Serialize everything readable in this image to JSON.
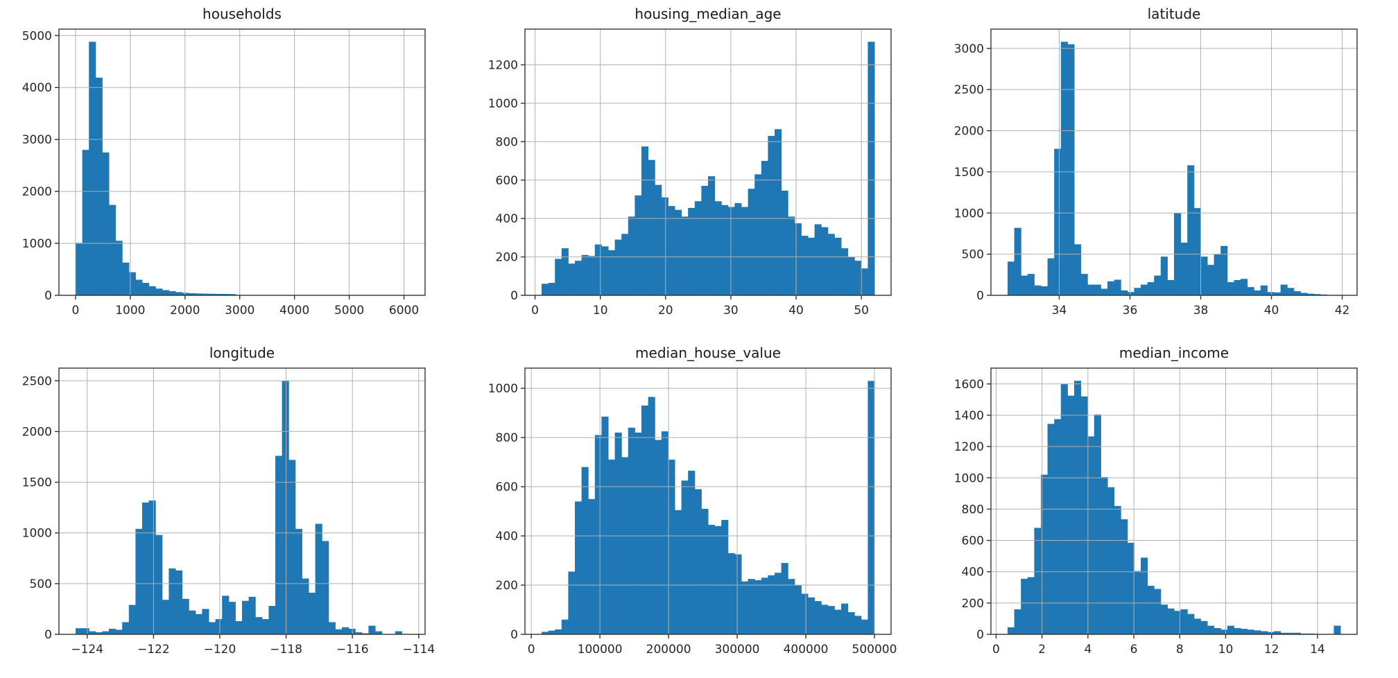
{
  "style": {
    "background": "#ffffff",
    "bar_color": "#1f77b4",
    "grid_color": "#b0b0b0",
    "spine_color": "#333333",
    "text_color": "#262626"
  },
  "chart_data": [
    {
      "type": "bar",
      "subtype": "histogram",
      "title": "households",
      "xlabel": "",
      "ylabel": "",
      "grid": true,
      "legend": false,
      "bin_range": [
        1,
        6082
      ],
      "values": [
        1010,
        2800,
        4880,
        4190,
        2750,
        1740,
        1050,
        630,
        445,
        300,
        240,
        175,
        130,
        100,
        80,
        62,
        48,
        40,
        35,
        32,
        30,
        28,
        27,
        25,
        8,
        6,
        5,
        4,
        3,
        3,
        2,
        2,
        2,
        1,
        1,
        1,
        1,
        1,
        0,
        0,
        1,
        0,
        0,
        0,
        0,
        0,
        0,
        0,
        0,
        1
      ],
      "xlim": [
        -303.05,
        6386.05
      ],
      "ylim": [
        0,
        5124
      ],
      "xticks": [
        0,
        1000,
        2000,
        3000,
        4000,
        5000,
        6000
      ],
      "xtick_labels": [
        "0",
        "1000",
        "2000",
        "3000",
        "4000",
        "5000",
        "6000"
      ],
      "yticks": [
        0,
        1000,
        2000,
        3000,
        4000,
        5000
      ],
      "ytick_labels": [
        "0",
        "1000",
        "2000",
        "3000",
        "4000",
        "5000"
      ]
    },
    {
      "type": "bar",
      "subtype": "histogram",
      "title": "housing_median_age",
      "xlabel": "",
      "ylabel": "",
      "grid": true,
      "legend": false,
      "bin_range": [
        1,
        52
      ],
      "values": [
        60,
        65,
        190,
        245,
        165,
        180,
        210,
        205,
        265,
        255,
        235,
        290,
        320,
        410,
        520,
        775,
        705,
        575,
        510,
        465,
        445,
        410,
        455,
        490,
        570,
        620,
        490,
        470,
        460,
        480,
        460,
        555,
        630,
        700,
        830,
        865,
        545,
        410,
        375,
        310,
        300,
        370,
        355,
        320,
        300,
        245,
        200,
        180,
        140,
        1320
      ],
      "xlim": [
        -1.55,
        54.55
      ],
      "ylim": [
        0,
        1386
      ],
      "xticks": [
        0,
        10,
        20,
        30,
        40,
        50
      ],
      "xtick_labels": [
        "0",
        "10",
        "20",
        "30",
        "40",
        "50"
      ],
      "yticks": [
        0,
        200,
        400,
        600,
        800,
        1000,
        1200
      ],
      "ytick_labels": [
        "0",
        "200",
        "400",
        "600",
        "800",
        "1000",
        "1200"
      ]
    },
    {
      "type": "bar",
      "subtype": "histogram",
      "title": "latitude",
      "xlabel": "",
      "ylabel": "",
      "grid": true,
      "legend": false,
      "bin_range": [
        32.54,
        41.95
      ],
      "values": [
        410,
        820,
        240,
        260,
        120,
        110,
        450,
        1780,
        3080,
        3050,
        620,
        260,
        130,
        130,
        80,
        170,
        190,
        60,
        40,
        90,
        130,
        160,
        240,
        470,
        185,
        1000,
        640,
        1580,
        1060,
        470,
        370,
        500,
        600,
        160,
        185,
        200,
        100,
        60,
        120,
        40,
        35,
        130,
        90,
        50,
        30,
        20,
        15,
        10,
        5,
        5
      ],
      "xlim": [
        32.0695,
        42.4205
      ],
      "ylim": [
        0,
        3234
      ],
      "xticks": [
        34,
        36,
        38,
        40,
        42
      ],
      "xtick_labels": [
        "34",
        "36",
        "38",
        "40",
        "42"
      ],
      "yticks": [
        0,
        500,
        1000,
        1500,
        2000,
        2500,
        3000
      ],
      "ytick_labels": [
        "0",
        "500",
        "1000",
        "1500",
        "2000",
        "2500",
        "3000"
      ]
    },
    {
      "type": "bar",
      "subtype": "histogram",
      "title": "longitude",
      "xlabel": "",
      "ylabel": "",
      "grid": true,
      "legend": false,
      "bin_range": [
        -124.35,
        -114.31
      ],
      "values": [
        60,
        60,
        30,
        20,
        30,
        55,
        45,
        120,
        290,
        1040,
        1300,
        1320,
        980,
        340,
        650,
        630,
        350,
        235,
        200,
        250,
        120,
        150,
        380,
        320,
        130,
        330,
        370,
        170,
        150,
        280,
        1760,
        2500,
        1720,
        1040,
        550,
        410,
        1090,
        920,
        120,
        50,
        70,
        55,
        20,
        10,
        85,
        30,
        0,
        0,
        30,
        0
      ],
      "xlim": [
        -124.852,
        -113.808
      ],
      "ylim": [
        0,
        2625
      ],
      "xticks": [
        -124,
        -122,
        -120,
        -118,
        -116,
        -114
      ],
      "xtick_labels": [
        "−124",
        "−122",
        "−120",
        "−118",
        "−116",
        "−114"
      ],
      "yticks": [
        0,
        500,
        1000,
        1500,
        2000,
        2500
      ],
      "ytick_labels": [
        "0",
        "500",
        "1000",
        "1500",
        "2000",
        "2500"
      ]
    },
    {
      "type": "bar",
      "subtype": "histogram",
      "title": "median_house_value",
      "xlabel": "",
      "ylabel": "",
      "grid": true,
      "legend": false,
      "bin_range": [
        14999,
        500001
      ],
      "values": [
        10,
        15,
        20,
        60,
        255,
        540,
        680,
        550,
        810,
        885,
        710,
        820,
        720,
        840,
        820,
        930,
        965,
        790,
        825,
        710,
        505,
        625,
        665,
        590,
        510,
        445,
        440,
        465,
        330,
        325,
        215,
        225,
        220,
        230,
        240,
        250,
        290,
        225,
        200,
        165,
        150,
        135,
        120,
        115,
        100,
        125,
        90,
        75,
        60,
        1030
      ],
      "xlim": [
        -9251.1,
        524251.1
      ],
      "ylim": [
        0,
        1082
      ],
      "xticks": [
        0,
        100000,
        200000,
        300000,
        400000,
        500000
      ],
      "xtick_labels": [
        "0",
        "100000",
        "200000",
        "300000",
        "400000",
        "500000"
      ],
      "yticks": [
        0,
        200,
        400,
        600,
        800,
        1000
      ],
      "ytick_labels": [
        "0",
        "200",
        "400",
        "600",
        "800",
        "1000"
      ]
    },
    {
      "type": "bar",
      "subtype": "histogram",
      "title": "median_income",
      "xlabel": "",
      "ylabel": "",
      "grid": true,
      "legend": false,
      "bin_range": [
        0.4999,
        15.0001
      ],
      "values": [
        45,
        160,
        355,
        365,
        680,
        1020,
        1345,
        1375,
        1600,
        1525,
        1620,
        1520,
        1265,
        1405,
        1005,
        940,
        820,
        735,
        585,
        405,
        490,
        310,
        290,
        190,
        165,
        150,
        160,
        130,
        100,
        85,
        55,
        40,
        30,
        55,
        40,
        35,
        30,
        25,
        20,
        15,
        20,
        10,
        10,
        10,
        5,
        5,
        0,
        0,
        0,
        55
      ],
      "xlim": [
        -0.22511,
        15.72511
      ],
      "ylim": [
        0,
        1701
      ],
      "xticks": [
        0,
        2,
        4,
        6,
        8,
        10,
        12,
        14
      ],
      "xtick_labels": [
        "0",
        "2",
        "4",
        "6",
        "8",
        "10",
        "12",
        "14"
      ],
      "yticks": [
        0,
        200,
        400,
        600,
        800,
        1000,
        1200,
        1400,
        1600
      ],
      "ytick_labels": [
        "0",
        "200",
        "400",
        "600",
        "800",
        "1000",
        "1200",
        "1400",
        "1600"
      ]
    }
  ]
}
